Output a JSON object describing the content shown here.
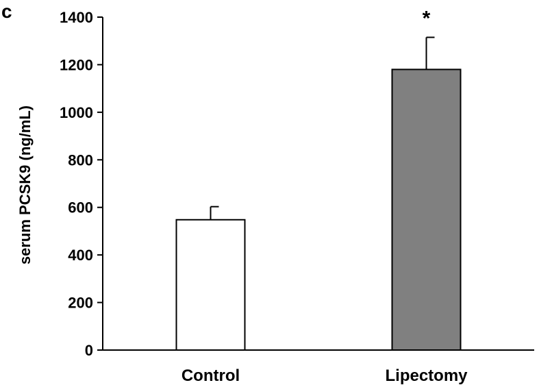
{
  "panel_label": "c",
  "chart_data": {
    "type": "bar",
    "categories": [
      "Control",
      "Lipectomy"
    ],
    "values": [
      548,
      1180
    ],
    "error_bars": [
      55,
      135
    ],
    "bar_colors": [
      "#ffffff",
      "#808080"
    ],
    "significance": [
      "",
      "*"
    ],
    "ylabel": "serum PCSK9 (ng/mL)",
    "ylim": [
      0,
      1400
    ],
    "yticks": [
      0,
      200,
      400,
      600,
      800,
      1000,
      1200,
      1400
    ],
    "grid": false
  }
}
